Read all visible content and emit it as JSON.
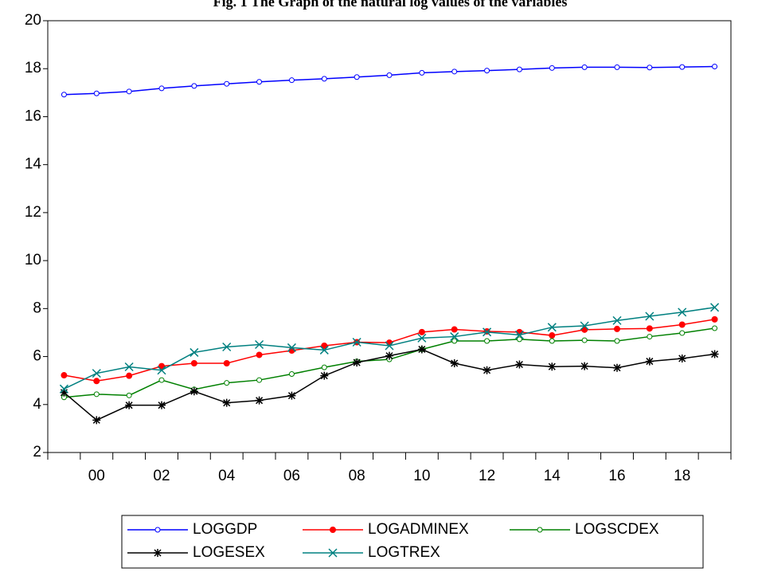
{
  "chart_data": {
    "type": "line",
    "title": "Fig. 1 The Graph of the natural log values of the variables",
    "categories": [
      null,
      "00",
      null,
      "02",
      null,
      "04",
      null,
      "06",
      null,
      "08",
      null,
      "10",
      null,
      "12",
      null,
      "14",
      null,
      "16",
      null,
      "18",
      null
    ],
    "series": [
      {
        "name": "LOGGDP",
        "color": "#0000ff",
        "marker": "open-circle",
        "values": [
          16.92,
          16.97,
          17.05,
          17.18,
          17.28,
          17.37,
          17.45,
          17.52,
          17.58,
          17.65,
          17.73,
          17.83,
          17.88,
          17.92,
          17.97,
          18.03,
          18.06,
          18.06,
          18.05,
          18.07,
          18.09
        ]
      },
      {
        "name": "LOGADMINEX",
        "color": "#ff0000",
        "marker": "filled-circle",
        "values": [
          5.22,
          4.98,
          5.2,
          5.6,
          5.72,
          5.72,
          6.07,
          6.25,
          6.45,
          6.6,
          6.58,
          7.02,
          7.13,
          7.05,
          7.02,
          6.88,
          7.12,
          7.15,
          7.17,
          7.33,
          7.55
        ]
      },
      {
        "name": "LOGSCDEX",
        "color": "#008000",
        "marker": "open-circle",
        "values": [
          4.3,
          4.43,
          4.38,
          5.02,
          4.63,
          4.9,
          5.02,
          5.27,
          5.55,
          5.8,
          5.88,
          6.3,
          6.65,
          6.65,
          6.72,
          6.65,
          6.68,
          6.65,
          6.83,
          6.98,
          7.18
        ]
      },
      {
        "name": "LOGESEX",
        "color": "#000000",
        "marker": "asterisk",
        "values": [
          4.5,
          3.35,
          3.97,
          3.97,
          4.55,
          4.07,
          4.17,
          4.37,
          5.2,
          5.75,
          6.03,
          6.3,
          5.72,
          5.43,
          5.67,
          5.58,
          5.6,
          5.53,
          5.8,
          5.92,
          6.1
        ]
      },
      {
        "name": "LOGTREX",
        "color": "#008080",
        "marker": "cross",
        "values": [
          4.65,
          5.3,
          5.57,
          5.43,
          6.17,
          6.4,
          6.5,
          6.37,
          6.27,
          6.6,
          6.45,
          6.77,
          6.83,
          7.02,
          6.9,
          7.22,
          7.28,
          7.5,
          7.68,
          7.85,
          8.05
        ]
      }
    ],
    "ylim": [
      2,
      20
    ],
    "yticks": [
      2,
      4,
      6,
      8,
      10,
      12,
      14,
      16,
      18,
      20
    ],
    "grid": false
  }
}
